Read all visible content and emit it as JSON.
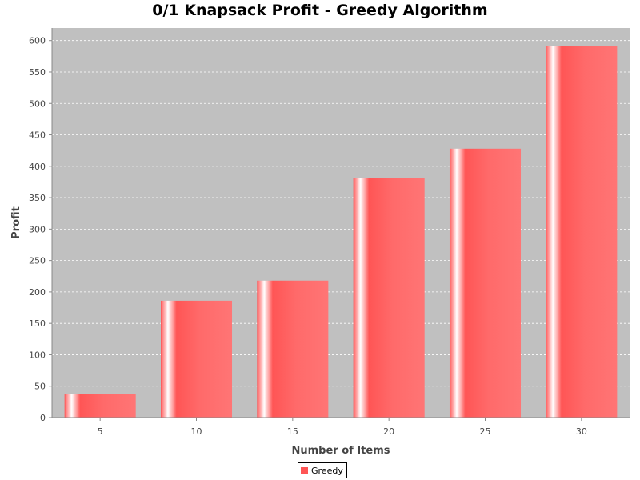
{
  "chart_data": {
    "type": "bar",
    "title": "0/1 Knapsack Profit - Greedy Algorithm",
    "xlabel": "Number of Items",
    "ylabel": "Profit",
    "categories": [
      "5",
      "10",
      "15",
      "20",
      "25",
      "30"
    ],
    "series": [
      {
        "name": "Greedy",
        "values": [
          38,
          186,
          218,
          381,
          428,
          591
        ]
      }
    ],
    "ylim": [
      0,
      620
    ],
    "yticks": [
      0,
      50,
      100,
      150,
      200,
      250,
      300,
      350,
      400,
      450,
      500,
      550,
      600
    ],
    "grid": true,
    "legend_position": "bottom-center",
    "colors": {
      "bar": "#ff5555",
      "bar_highlight": "#ffffff",
      "plot_background": "#c0c0c0",
      "gridline": "#ffffff"
    }
  }
}
